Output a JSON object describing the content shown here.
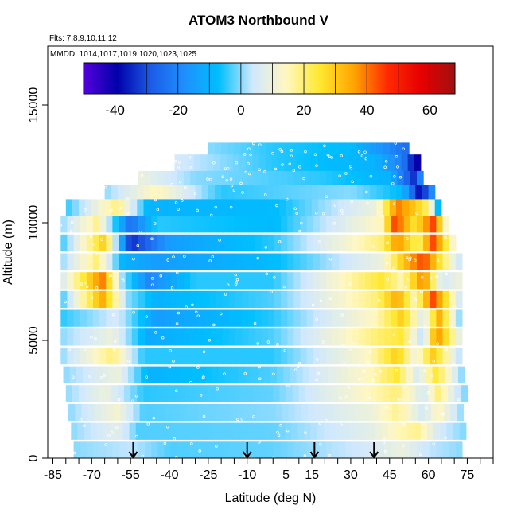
{
  "chart_data": {
    "type": "heatmap",
    "title": "ATOM3 Northbound V",
    "subtitle_flights": "Flts: 7,8,9,10,11,12",
    "subtitle_dates": "MMDD: 1014,1017,1019,1020,1023,1025",
    "xlabel": "Latitude (deg N)",
    "ylabel": "Altitude (m)",
    "xlim": [
      -87,
      85
    ],
    "ylim": [
      0,
      17500
    ],
    "x_ticks": [
      -85,
      -70,
      -55,
      -40,
      -25,
      -10,
      5,
      15,
      30,
      45,
      60,
      75
    ],
    "y_ticks": [
      0,
      5000,
      10000,
      15000
    ],
    "colorbar": {
      "range": [
        -50,
        68
      ],
      "ticks": [
        -40,
        -20,
        0,
        20,
        40,
        60
      ],
      "colors": [
        "#5500dd",
        "#0000aa",
        "#1c5ce6",
        "#1e90ff",
        "#00bfff",
        "#cfe8ff",
        "#fff7c2",
        "#ffe830",
        "#ffa500",
        "#ff2a00",
        "#e60000",
        "#a01010"
      ]
    },
    "arrows_latitude": [
      -54,
      -10,
      16,
      39
    ],
    "profile_rows": [
      {
        "alt": 12700,
        "from": -25,
        "to": 52,
        "values": [
          [
            -25,
            0
          ],
          [
            0,
            -5
          ],
          [
            30,
            -8
          ],
          [
            52,
            -25
          ]
        ]
      },
      {
        "alt": 12200,
        "from": -38,
        "to": 55,
        "values": [
          [
            -38,
            5
          ],
          [
            0,
            -5
          ],
          [
            40,
            -10
          ],
          [
            50,
            -22
          ],
          [
            55,
            -40
          ]
        ]
      },
      {
        "alt": 11500,
        "from": -52,
        "to": 58,
        "values": [
          [
            -52,
            10
          ],
          [
            -30,
            0
          ],
          [
            20,
            -5
          ],
          [
            45,
            -10
          ],
          [
            55,
            -35
          ],
          [
            58,
            -10
          ]
        ]
      },
      {
        "alt": 10900,
        "from": -65,
        "to": 62,
        "values": [
          [
            -65,
            0
          ],
          [
            -45,
            15
          ],
          [
            -20,
            -5
          ],
          [
            30,
            0
          ],
          [
            50,
            -8
          ],
          [
            57,
            -40
          ],
          [
            62,
            -15
          ]
        ]
      },
      {
        "alt": 10300,
        "from": -80,
        "to": 64,
        "values": [
          [
            -80,
            -5
          ],
          [
            -60,
            20
          ],
          [
            -48,
            -10
          ],
          [
            0,
            -8
          ],
          [
            40,
            10
          ],
          [
            48,
            40
          ],
          [
            55,
            30
          ],
          [
            60,
            20
          ],
          [
            64,
            -10
          ]
        ]
      },
      {
        "alt": 9600,
        "from": -82,
        "to": 68,
        "values": [
          [
            -82,
            0
          ],
          [
            -68,
            18
          ],
          [
            -55,
            -25
          ],
          [
            -45,
            -5
          ],
          [
            0,
            -8
          ],
          [
            42,
            15
          ],
          [
            47,
            45
          ],
          [
            55,
            25
          ],
          [
            62,
            45
          ],
          [
            68,
            5
          ]
        ]
      },
      {
        "alt": 8800,
        "from": -82,
        "to": 70,
        "values": [
          [
            -82,
            -5
          ],
          [
            -65,
            30
          ],
          [
            -55,
            -35
          ],
          [
            -40,
            -15
          ],
          [
            0,
            -5
          ],
          [
            42,
            20
          ],
          [
            48,
            38
          ],
          [
            56,
            20
          ],
          [
            62,
            45
          ],
          [
            70,
            10
          ]
        ]
      },
      {
        "alt": 8000,
        "from": -82,
        "to": 71,
        "values": [
          [
            -82,
            0
          ],
          [
            -68,
            20
          ],
          [
            -58,
            -10
          ],
          [
            -45,
            -15
          ],
          [
            0,
            -8
          ],
          [
            42,
            10
          ],
          [
            50,
            30
          ],
          [
            58,
            45
          ],
          [
            63,
            30
          ],
          [
            71,
            5
          ]
        ]
      },
      {
        "alt": 7200,
        "from": -82,
        "to": 72,
        "values": [
          [
            -82,
            5
          ],
          [
            -66,
            40
          ],
          [
            -58,
            0
          ],
          [
            -48,
            -20
          ],
          [
            -30,
            -5
          ],
          [
            0,
            -5
          ],
          [
            42,
            25
          ],
          [
            50,
            15
          ],
          [
            58,
            40
          ],
          [
            65,
            5
          ],
          [
            72,
            10
          ]
        ]
      },
      {
        "alt": 6400,
        "from": -82,
        "to": 72,
        "values": [
          [
            -82,
            -5
          ],
          [
            -66,
            35
          ],
          [
            -56,
            0
          ],
          [
            -45,
            -10
          ],
          [
            0,
            -3
          ],
          [
            40,
            20
          ],
          [
            48,
            35
          ],
          [
            55,
            15
          ],
          [
            62,
            45
          ],
          [
            72,
            5
          ]
        ]
      },
      {
        "alt": 5600,
        "from": -82,
        "to": 72,
        "values": [
          [
            -82,
            -5
          ],
          [
            -60,
            5
          ],
          [
            -45,
            -15
          ],
          [
            0,
            -5
          ],
          [
            40,
            15
          ],
          [
            50,
            30
          ],
          [
            58,
            5
          ],
          [
            64,
            35
          ],
          [
            72,
            0
          ]
        ]
      },
      {
        "alt": 4800,
        "from": -82,
        "to": 73,
        "values": [
          [
            -82,
            0
          ],
          [
            -62,
            10
          ],
          [
            -48,
            -12
          ],
          [
            0,
            -3
          ],
          [
            40,
            20
          ],
          [
            50,
            25
          ],
          [
            58,
            0
          ],
          [
            63,
            40
          ],
          [
            73,
            5
          ]
        ]
      },
      {
        "alt": 4000,
        "from": -82,
        "to": 73,
        "values": [
          [
            -82,
            0
          ],
          [
            -62,
            20
          ],
          [
            -50,
            -5
          ],
          [
            0,
            -5
          ],
          [
            38,
            15
          ],
          [
            48,
            30
          ],
          [
            55,
            10
          ],
          [
            62,
            30
          ],
          [
            73,
            0
          ]
        ]
      },
      {
        "alt": 3200,
        "from": -81,
        "to": 73,
        "values": [
          [
            -81,
            0
          ],
          [
            -60,
            10
          ],
          [
            -48,
            -10
          ],
          [
            0,
            -3
          ],
          [
            38,
            15
          ],
          [
            48,
            25
          ],
          [
            56,
            5
          ],
          [
            63,
            25
          ],
          [
            73,
            0
          ]
        ]
      },
      {
        "alt": 2400,
        "from": -80,
        "to": 73,
        "values": [
          [
            -80,
            0
          ],
          [
            -65,
            10
          ],
          [
            -50,
            -5
          ],
          [
            0,
            -2
          ],
          [
            38,
            15
          ],
          [
            48,
            20
          ],
          [
            58,
            5
          ],
          [
            64,
            20
          ],
          [
            73,
            0
          ]
        ]
      },
      {
        "alt": 1600,
        "from": -79,
        "to": 73,
        "values": [
          [
            -79,
            0
          ],
          [
            -60,
            12
          ],
          [
            -50,
            -3
          ],
          [
            0,
            0
          ],
          [
            38,
            10
          ],
          [
            48,
            18
          ],
          [
            58,
            5
          ],
          [
            64,
            15
          ],
          [
            73,
            0
          ]
        ]
      },
      {
        "alt": 800,
        "from": -78,
        "to": 73,
        "values": [
          [
            -78,
            0
          ],
          [
            -60,
            8
          ],
          [
            -52,
            -3
          ],
          [
            0,
            -2
          ],
          [
            38,
            8
          ],
          [
            48,
            15
          ],
          [
            56,
            18
          ],
          [
            64,
            5
          ],
          [
            73,
            0
          ]
        ]
      },
      {
        "alt": 0,
        "from": -77,
        "to": 73,
        "values": [
          [
            -77,
            0
          ],
          [
            -55,
            3
          ],
          [
            -40,
            -3
          ],
          [
            0,
            -2
          ],
          [
            38,
            5
          ],
          [
            50,
            10
          ],
          [
            60,
            3
          ],
          [
            73,
            0
          ]
        ]
      }
    ]
  }
}
